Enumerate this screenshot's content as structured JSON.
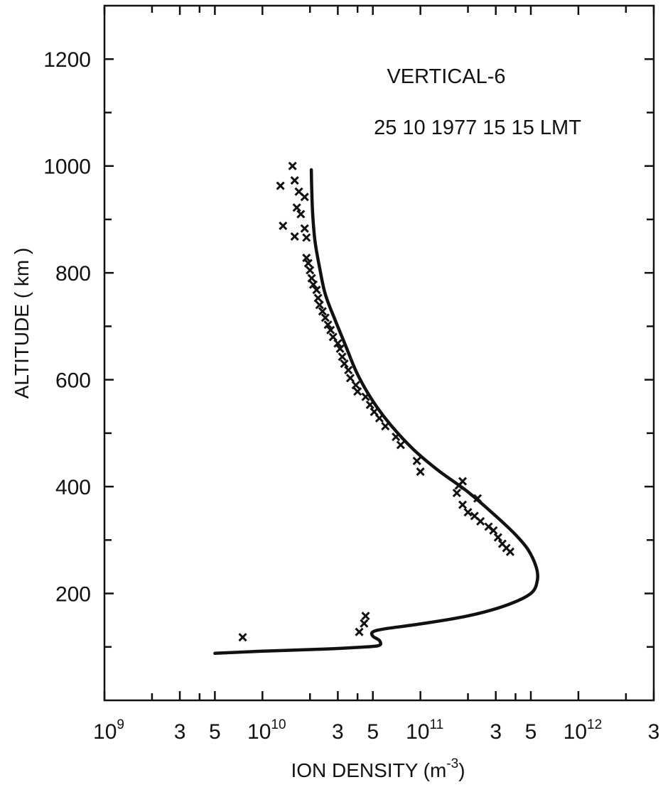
{
  "chart_data": {
    "type": "line",
    "title": "VERTICAL-6",
    "subtitle": "25 10 1977 15 15 LMT",
    "xlabel": {
      "text": "ION DENSITY (m",
      "exp": "-3",
      "suffix": ")"
    },
    "ylabel": "ALTITUDE ( km )",
    "xscale": "log",
    "xlim": [
      1000000000.0,
      3000000000000.0
    ],
    "ylim": [
      0,
      1300
    ],
    "grid": false,
    "legend": "none",
    "x_tick_labels": [
      {
        "x": 1000000000.0,
        "base": "10",
        "exp": "9"
      },
      {
        "x": 3000000000.0,
        "base": "3",
        "exp": ""
      },
      {
        "x": 5000000000.0,
        "base": "5",
        "exp": ""
      },
      {
        "x": 10000000000.0,
        "base": "10",
        "exp": "10"
      },
      {
        "x": 30000000000.0,
        "base": "3",
        "exp": ""
      },
      {
        "x": 50000000000.0,
        "base": "5",
        "exp": ""
      },
      {
        "x": 100000000000.0,
        "base": "10",
        "exp": "11"
      },
      {
        "x": 300000000000.0,
        "base": "3",
        "exp": ""
      },
      {
        "x": 500000000000.0,
        "base": "5",
        "exp": ""
      },
      {
        "x": 1000000000000.0,
        "base": "10",
        "exp": "12"
      },
      {
        "x": 3000000000000.0,
        "base": "3",
        "exp": ""
      }
    ],
    "x_minor_ticks": [
      2000000000.0,
      4000000000.0,
      20000000000.0,
      40000000000.0,
      200000000000.0,
      400000000000.0,
      2000000000000.0
    ],
    "y_ticks": [
      200,
      400,
      600,
      800,
      1000,
      1200
    ],
    "y_minor_ticks": [
      100,
      300,
      500,
      700,
      900,
      1100
    ],
    "series": [
      {
        "kind": "line",
        "points": [
          [
            5000000000.0,
            88
          ],
          [
            10000000000.0,
            92
          ],
          [
            25000000000.0,
            96
          ],
          [
            45000000000.0,
            100
          ],
          [
            55000000000.0,
            103
          ],
          [
            55000000000.0,
            112
          ],
          [
            50000000000.0,
            120
          ],
          [
            50000000000.0,
            128
          ],
          [
            60000000000.0,
            134
          ],
          [
            100000000000.0,
            143
          ],
          [
            200000000000.0,
            158
          ],
          [
            350000000000.0,
            178
          ],
          [
            500000000000.0,
            200
          ],
          [
            550000000000.0,
            225
          ],
          [
            540000000000.0,
            250
          ],
          [
            480000000000.0,
            282
          ],
          [
            400000000000.0,
            310
          ],
          [
            300000000000.0,
            345
          ],
          [
            200000000000.0,
            390
          ],
          [
            130000000000.0,
            430
          ],
          [
            90000000000.0,
            470
          ],
          [
            65000000000.0,
            515
          ],
          [
            50000000000.0,
            560
          ],
          [
            40000000000.0,
            610
          ],
          [
            34000000000.0,
            660
          ],
          [
            29000000000.0,
            710
          ],
          [
            25000000000.0,
            760
          ],
          [
            23000000000.0,
            810
          ],
          [
            21500000000.0,
            860
          ],
          [
            20800000000.0,
            910
          ],
          [
            20500000000.0,
            960
          ],
          [
            20400000000.0,
            993
          ]
        ]
      },
      {
        "kind": "scatter",
        "marker": "x",
        "points": [
          [
            7500000000.0,
            118
          ],
          [
            41000000000.0,
            128
          ],
          [
            44000000000.0,
            144
          ],
          [
            45000000000.0,
            158
          ],
          [
            370000000000.0,
            278
          ],
          [
            350000000000.0,
            285
          ],
          [
            330000000000.0,
            293
          ],
          [
            310000000000.0,
            305
          ],
          [
            290000000000.0,
            318
          ],
          [
            270000000000.0,
            325
          ],
          [
            240000000000.0,
            335
          ],
          [
            220000000000.0,
            345
          ],
          [
            200000000000.0,
            352
          ],
          [
            185000000000.0,
            366
          ],
          [
            170000000000.0,
            388
          ],
          [
            175000000000.0,
            402
          ],
          [
            185000000000.0,
            410
          ],
          [
            230000000000.0,
            378
          ],
          [
            95000000000.0,
            448
          ],
          [
            100000000000.0,
            428
          ],
          [
            75000000000.0,
            478
          ],
          [
            70000000000.0,
            493
          ],
          [
            60000000000.0,
            513
          ],
          [
            55000000000.0,
            528
          ],
          [
            51000000000.0,
            540
          ],
          [
            48000000000.0,
            553
          ],
          [
            45000000000.0,
            568
          ],
          [
            40000000000.0,
            578
          ],
          [
            39000000000.0,
            590
          ],
          [
            36000000000.0,
            603
          ],
          [
            35000000000.0,
            618
          ],
          [
            33000000000.0,
            630
          ],
          [
            32000000000.0,
            643
          ],
          [
            31000000000.0,
            658
          ],
          [
            30000000000.0,
            668
          ],
          [
            28000000000.0,
            680
          ],
          [
            27000000000.0,
            693
          ],
          [
            26000000000.0,
            703
          ],
          [
            25000000000.0,
            716
          ],
          [
            24000000000.0,
            728
          ],
          [
            23000000000.0,
            740
          ],
          [
            22500000000.0,
            753
          ],
          [
            22000000000.0,
            768
          ],
          [
            21000000000.0,
            778
          ],
          [
            20500000000.0,
            790
          ],
          [
            20000000000.0,
            805
          ],
          [
            19500000000.0,
            818
          ],
          [
            19000000000.0,
            828
          ],
          [
            19000000000.0,
            866
          ],
          [
            18500000000.0,
            883
          ],
          [
            17500000000.0,
            910
          ],
          [
            16500000000.0,
            922
          ],
          [
            16000000000.0,
            868
          ],
          [
            17000000000.0,
            952
          ],
          [
            18500000000.0,
            942
          ],
          [
            16000000000.0,
            973
          ],
          [
            15500000000.0,
            1000
          ],
          [
            13000000000.0,
            963
          ],
          [
            13500000000.0,
            888
          ]
        ]
      }
    ]
  }
}
